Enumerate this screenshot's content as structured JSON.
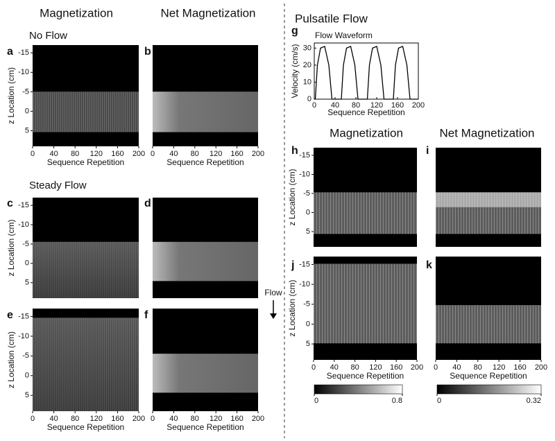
{
  "left": {
    "col1": "Magnetization",
    "col2": "Net Magnetization",
    "no_flow": "No Flow",
    "steady_flow": "Steady Flow"
  },
  "right": {
    "title": "Pulsatile Flow",
    "col1": "Magnetization",
    "col2": "Net Magnetization"
  },
  "flow_arrow": "Flow",
  "z_axis": {
    "label": "z Location (cm)",
    "ylim": [
      -17,
      9
    ],
    "ticks": [
      -15,
      -10,
      -5,
      0,
      5
    ]
  },
  "x_axis": {
    "label": "Sequence Repetition",
    "xlim": [
      0,
      200
    ],
    "ticks": [
      0,
      40,
      80,
      120,
      160,
      200
    ]
  },
  "panels": [
    {
      "letter": "a"
    },
    {
      "letter": "b"
    },
    {
      "letter": "c"
    },
    {
      "letter": "d"
    },
    {
      "letter": "e"
    },
    {
      "letter": "f"
    },
    {
      "letter": "h"
    },
    {
      "letter": "i"
    },
    {
      "letter": "j"
    },
    {
      "letter": "k"
    }
  ],
  "waveform": {
    "letter": "g",
    "title": "Flow Waveform",
    "ylabel": "Velocity (cm/s)",
    "xlabel": "Sequence Repetition",
    "xlim": [
      0,
      200
    ],
    "ylim": [
      0,
      33
    ],
    "xticks": [
      0,
      40,
      80,
      120,
      160,
      200
    ],
    "yticks": [
      0,
      10,
      20,
      30
    ],
    "x": [
      0,
      2,
      6,
      12,
      20,
      28,
      34,
      52,
      56,
      62,
      70,
      78,
      84,
      102,
      106,
      112,
      120,
      128,
      134,
      152,
      156,
      162,
      170,
      178,
      184,
      200
    ],
    "values": [
      0,
      0,
      20,
      30,
      31,
      20,
      0,
      0,
      20,
      30,
      31,
      20,
      0,
      0,
      20,
      30,
      31,
      20,
      0,
      0,
      20,
      30,
      31,
      20,
      0,
      0
    ]
  },
  "colorbars": [
    {
      "ticks": [
        0,
        0.8
      ]
    },
    {
      "ticks": [
        0,
        0.32
      ]
    }
  ]
}
